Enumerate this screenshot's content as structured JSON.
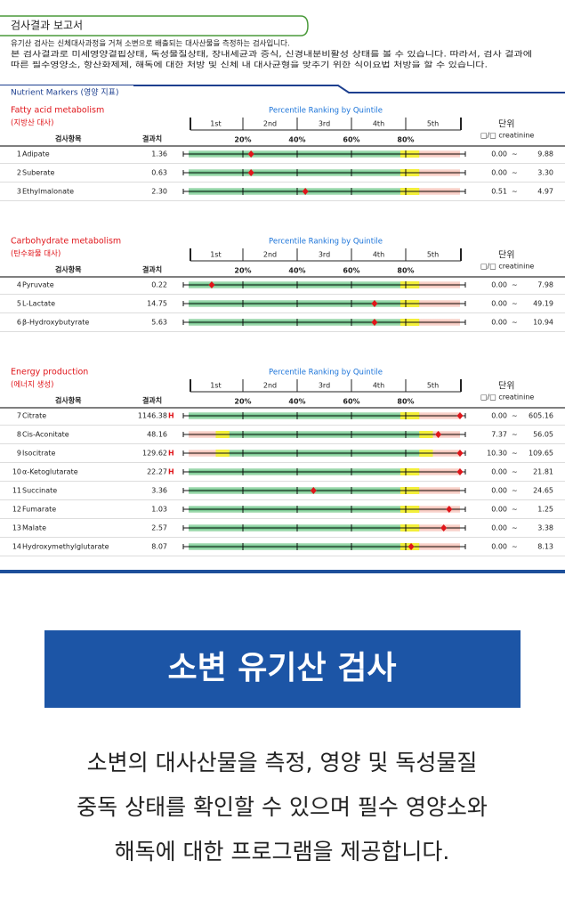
{
  "header": {
    "title": "검사결과 보고서",
    "intro": [
      "유기산 검사는 신체대사과정을 거쳐 소변으로 배출되는 대사산물을 측정하는 검사입니다.",
      "본 검사결과로 미세영양결핍상태, 독성물질상태, 장내세균과 증식, 신경내분비활성 상태를 볼 수 있습니다. 따라서, 검사 결과에",
      "따른 필수영양소, 항산화제제, 해독에 대한 처방 및 신체 내 대사균형을 맞추기 위한 식이요법 처방을 할 수 있습니다."
    ]
  },
  "panel": {
    "title": "Nutrient Markers (영양 지표)",
    "scale_title": "Percentile Ranking by Quintile",
    "quintiles": [
      "1st",
      "2nd",
      "3rd",
      "4th",
      "5th"
    ],
    "percent_ticks": [
      {
        "value": 20,
        "label": "20%"
      },
      {
        "value": 40,
        "label": "40%"
      },
      {
        "value": 60,
        "label": "60%"
      },
      {
        "value": 80,
        "label": "80%"
      }
    ],
    "columns": {
      "item": "검사항목",
      "result": "결과치",
      "unit": "단위",
      "unit_detail": "□/□ creatinine"
    }
  },
  "sections": [
    {
      "title": "Fatty acid metabolism",
      "subtitle": "(지방산 대사)",
      "rows": [
        {
          "no": "1",
          "name": "Adipate",
          "result": "1.36",
          "percentile": 23,
          "range": [
            "0.00",
            "~",
            "9.88"
          ]
        },
        {
          "no": "2",
          "name": "Suberate",
          "result": "0.63",
          "percentile": 23,
          "range": [
            "0.00",
            "~",
            "3.30"
          ]
        },
        {
          "no": "3",
          "name": "Ethylmalonate",
          "result": "2.30",
          "percentile": 43,
          "range": [
            "0.51",
            "~",
            "4.97"
          ]
        }
      ]
    },
    {
      "title": "Carbohydrate metabolism",
      "subtitle": "(탄수화물 대사)",
      "rows": [
        {
          "no": "4",
          "name": "Pyruvate",
          "result": "0.22",
          "percentile": 8.5,
          "range": [
            "0.00",
            "~",
            "7.98"
          ]
        },
        {
          "no": "5",
          "name": "L-Lactate",
          "result": "14.75",
          "percentile": 68.5,
          "range": [
            "0.00",
            "~",
            "49.19"
          ]
        },
        {
          "no": "6",
          "name": "β-Hydroxybutyrate",
          "result": "5.63",
          "percentile": 68.5,
          "range": [
            "0.00",
            "~",
            "10.94"
          ]
        }
      ]
    },
    {
      "title": "Energy production",
      "subtitle": "(에너지 생성)",
      "rows": [
        {
          "no": "7",
          "name": "Citrate",
          "result": "1146.38",
          "flag": "H",
          "percentile": 100,
          "range": [
            "0.00",
            "~",
            "605.16"
          ]
        },
        {
          "no": "8",
          "name": "Cis-Aconitate",
          "result": "48.16",
          "two_sided": true,
          "percentile": 92,
          "range": [
            "7.37",
            "~",
            "56.05"
          ]
        },
        {
          "no": "9",
          "name": "Isocitrate",
          "result": "129.62",
          "flag": "H",
          "two_sided": true,
          "percentile": 100,
          "range": [
            "10.30",
            "~",
            "109.65"
          ]
        },
        {
          "no": "10",
          "name": "α-Ketoglutarate",
          "result": "22.27",
          "flag": "H",
          "percentile": 100,
          "range": [
            "0.00",
            "~",
            "21.81"
          ]
        },
        {
          "no": "11",
          "name": "Succinate",
          "result": "3.36",
          "percentile": 46,
          "range": [
            "0.00",
            "~",
            "24.65"
          ]
        },
        {
          "no": "12",
          "name": "Fumarate",
          "result": "1.03",
          "percentile": 96,
          "range": [
            "0.00",
            "~",
            "1.25"
          ]
        },
        {
          "no": "13",
          "name": "Malate",
          "result": "2.57",
          "percentile": 94,
          "range": [
            "0.00",
            "~",
            "3.38"
          ]
        },
        {
          "no": "14",
          "name": "Hydroxymethylglutarate",
          "result": "8.07",
          "percentile": 82,
          "range": [
            "0.00",
            "~",
            "8.13"
          ]
        }
      ]
    }
  ],
  "banner": {
    "title": "소변 유기산 검사",
    "lines": [
      "소변의 대사산물을 측정, 영양 및 독성물질",
      "중독 상태를 확인할 수 있으며 필수 영양소와",
      "해독에 대한 프로그램을 제공합니다."
    ]
  }
}
